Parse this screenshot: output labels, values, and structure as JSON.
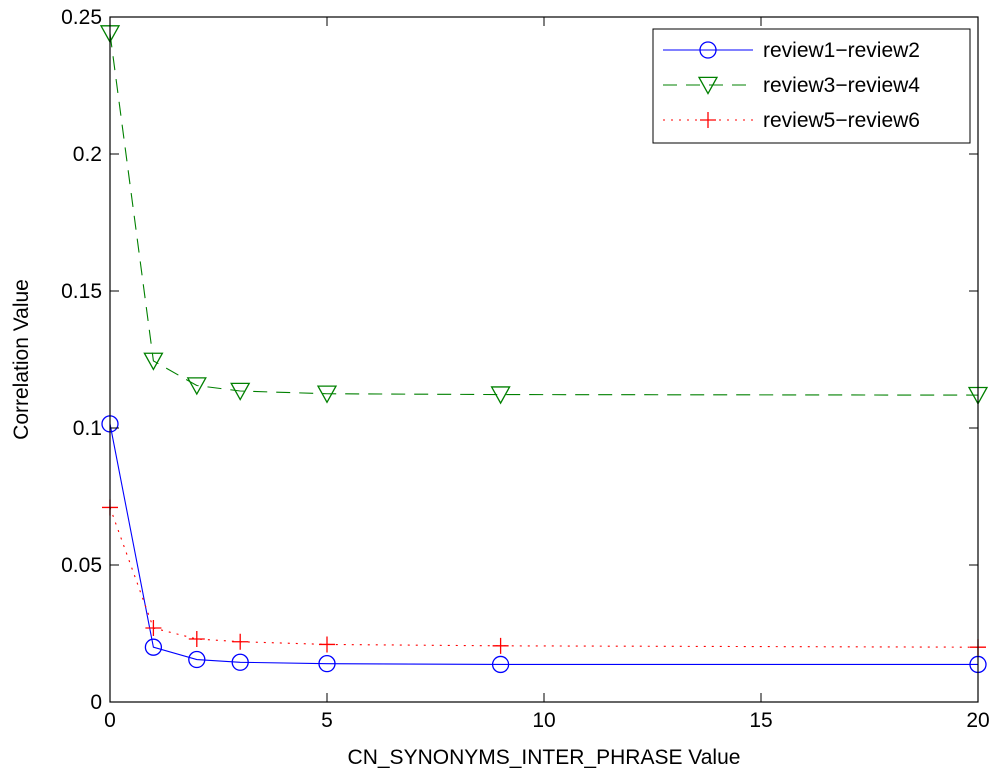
{
  "chart_data": {
    "type": "line",
    "title": "",
    "xlabel": "CN_SYNONYMS_INTER_PHRASE Value",
    "ylabel": "Correlation Value",
    "xlim": [
      0,
      20
    ],
    "ylim": [
      0,
      0.25
    ],
    "x_ticks": [
      0,
      5,
      10,
      15,
      20
    ],
    "x_tick_labels": [
      "0",
      "5",
      "10",
      "15",
      "20"
    ],
    "y_ticks": [
      0,
      0.05,
      0.1,
      0.15,
      0.2,
      0.25
    ],
    "y_tick_labels": [
      "0",
      "0.05",
      "0.1",
      "0.15",
      "0.2",
      "0.25"
    ],
    "grid": false,
    "legend_position": "top-right",
    "x": [
      0,
      1,
      2,
      3,
      5,
      9,
      20
    ],
    "series": [
      {
        "name": "review1−review2",
        "color": "#0000ff",
        "line_style": "solid",
        "marker": "circle",
        "values": [
          0.1015,
          0.02,
          0.0155,
          0.0145,
          0.014,
          0.0137,
          0.0137
        ]
      },
      {
        "name": "review3−review4",
        "color": "#008000",
        "line_style": "dashed",
        "marker": "triangle-down",
        "values": [
          0.244,
          0.1245,
          0.1155,
          0.1135,
          0.1125,
          0.1122,
          0.112
        ]
      },
      {
        "name": "review5−review6",
        "color": "#ff0000",
        "line_style": "dotted",
        "marker": "plus",
        "values": [
          0.071,
          0.027,
          0.023,
          0.022,
          0.021,
          0.0205,
          0.02
        ]
      }
    ]
  }
}
